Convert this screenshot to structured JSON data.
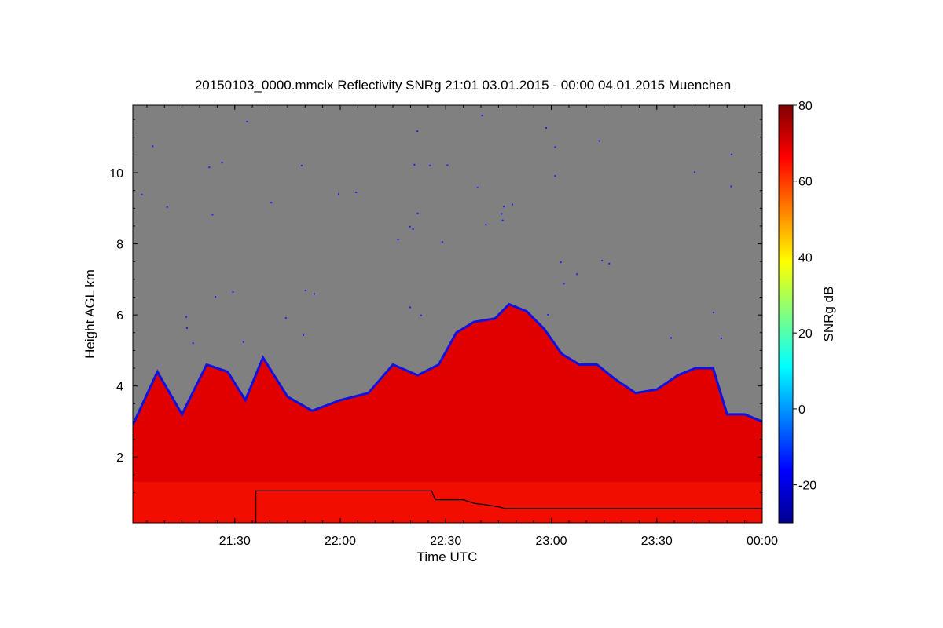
{
  "chart_data": {
    "type": "heatmap",
    "title": "20150103_0000.mmclx Reflectivity SNRg   21:01 03.01.2015 - 00:00 04.01.2015 Muenchen",
    "xlabel": "Time UTC",
    "ylabel": "Height AGL km",
    "colorbar_label": "SNRg dB",
    "x_range": [
      "21:01",
      "00:00"
    ],
    "x_ticks": [
      "21:30",
      "22:00",
      "22:30",
      "23:00",
      "23:30",
      "00:00"
    ],
    "y_range": [
      0.15,
      11.9
    ],
    "y_ticks": [
      "2",
      "4",
      "6",
      "8",
      "10"
    ],
    "colorbar_range": [
      -30,
      80
    ],
    "colorbar_ticks": [
      "-20",
      "0",
      "20",
      "40",
      "60",
      "80"
    ],
    "background_color": "#808080",
    "colormap": [
      "#00008f",
      "#0000ff",
      "#0080ff",
      "#00ffff",
      "#80ff80",
      "#ffff00",
      "#ff8000",
      "#ff0000",
      "#800000"
    ],
    "echo_top_km": [
      {
        "time": "21:01",
        "height": 2.9
      },
      {
        "time": "21:08",
        "height": 4.4
      },
      {
        "time": "21:15",
        "height": 3.2
      },
      {
        "time": "21:22",
        "height": 4.6
      },
      {
        "time": "21:28",
        "height": 4.4
      },
      {
        "time": "21:33",
        "height": 3.6
      },
      {
        "time": "21:38",
        "height": 4.8
      },
      {
        "time": "21:45",
        "height": 3.7
      },
      {
        "time": "21:52",
        "height": 3.3
      },
      {
        "time": "22:00",
        "height": 3.6
      },
      {
        "time": "22:08",
        "height": 3.8
      },
      {
        "time": "22:15",
        "height": 4.6
      },
      {
        "time": "22:22",
        "height": 4.3
      },
      {
        "time": "22:28",
        "height": 4.6
      },
      {
        "time": "22:33",
        "height": 5.5
      },
      {
        "time": "22:38",
        "height": 5.8
      },
      {
        "time": "22:44",
        "height": 5.9
      },
      {
        "time": "22:48",
        "height": 6.3
      },
      {
        "time": "22:53",
        "height": 6.1
      },
      {
        "time": "22:58",
        "height": 5.6
      },
      {
        "time": "23:03",
        "height": 4.9
      },
      {
        "time": "23:08",
        "height": 4.6
      },
      {
        "time": "23:13",
        "height": 4.6
      },
      {
        "time": "23:18",
        "height": 4.2
      },
      {
        "time": "23:24",
        "height": 3.8
      },
      {
        "time": "23:30",
        "height": 3.9
      },
      {
        "time": "23:36",
        "height": 4.3
      },
      {
        "time": "23:41",
        "height": 4.5
      },
      {
        "time": "23:46",
        "height": 4.5
      },
      {
        "time": "23:50",
        "height": 3.2
      },
      {
        "time": "23:55",
        "height": 3.2
      },
      {
        "time": "00:00",
        "height": 3.0
      }
    ],
    "black_line_km": [
      {
        "time": "21:36",
        "height": 1.05
      },
      {
        "time": "22:26",
        "height": 1.05
      },
      {
        "time": "22:27",
        "height": 0.8
      },
      {
        "time": "22:35",
        "height": 0.8
      },
      {
        "time": "22:38",
        "height": 0.7
      },
      {
        "time": "22:42",
        "height": 0.65
      },
      {
        "time": "22:45",
        "height": 0.6
      },
      {
        "time": "22:47",
        "height": 0.55
      },
      {
        "time": "00:00",
        "height": 0.55
      }
    ],
    "grid": false,
    "legend": "colorbar-right"
  }
}
